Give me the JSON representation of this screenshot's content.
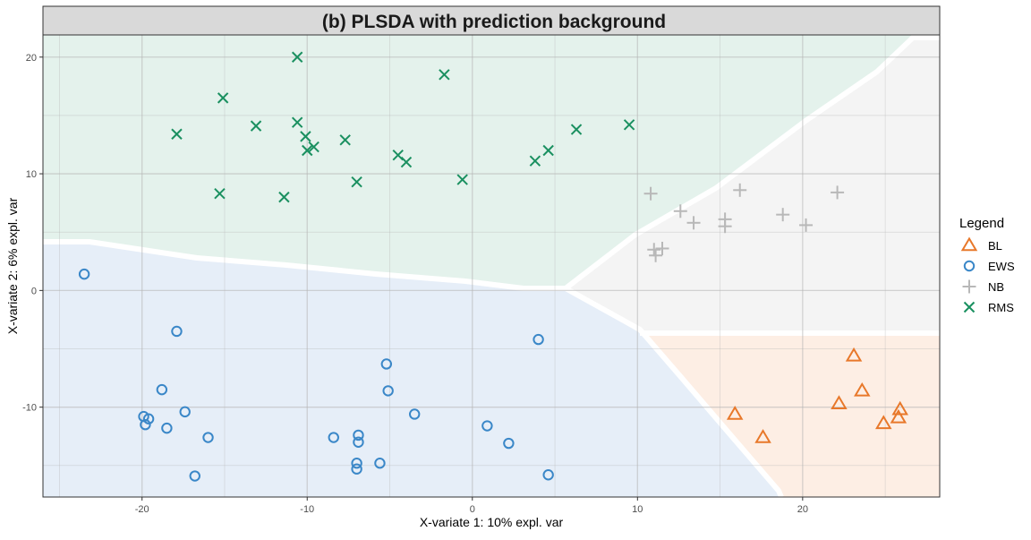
{
  "chart_data": {
    "type": "scatter",
    "title": "(b) PLSDA with prediction background",
    "xlabel": "X-variate 1: 10% expl. var",
    "ylabel": "X-variate 2: 6% expl. var",
    "xlim": [
      -26,
      28.3
    ],
    "ylim": [
      -17.7,
      21.9
    ],
    "x_ticks": [
      -20,
      -10,
      0,
      10,
      20
    ],
    "y_ticks": [
      -10,
      0,
      10,
      20
    ],
    "grid": true,
    "legend": {
      "title": "Legend",
      "position": "right"
    },
    "colors": {
      "BL": "#E8782A",
      "EWS": "#3A87C8",
      "NB": "#B8B8B8",
      "RMS": "#1A9060"
    },
    "background_regions": {
      "RMS": "#E4F2EC",
      "EWS": "#E6EEF8",
      "NB": "#F4F4F4",
      "BL": "#FDEEE4"
    },
    "series": [
      {
        "name": "BL",
        "marker": "triangle",
        "points": [
          [
            15.9,
            -10.6
          ],
          [
            17.6,
            -12.6
          ],
          [
            22.2,
            -9.7
          ],
          [
            23.1,
            -5.6
          ],
          [
            23.6,
            -8.6
          ],
          [
            24.9,
            -11.4
          ],
          [
            25.8,
            -10.9
          ],
          [
            25.9,
            -10.2
          ]
        ]
      },
      {
        "name": "EWS",
        "marker": "circle",
        "points": [
          [
            -23.5,
            1.4
          ],
          [
            -17.9,
            -3.5
          ],
          [
            -18.8,
            -8.5
          ],
          [
            -19.9,
            -10.8
          ],
          [
            -19.6,
            -11.0
          ],
          [
            -19.8,
            -11.5
          ],
          [
            -17.4,
            -10.4
          ],
          [
            -18.5,
            -11.8
          ],
          [
            -16.0,
            -12.6
          ],
          [
            -16.8,
            -15.9
          ],
          [
            -8.4,
            -12.6
          ],
          [
            -6.9,
            -12.4
          ],
          [
            -6.9,
            -13.0
          ],
          [
            -7.0,
            -14.8
          ],
          [
            -7.0,
            -15.3
          ],
          [
            -5.6,
            -14.8
          ],
          [
            -5.2,
            -6.3
          ],
          [
            -5.1,
            -8.6
          ],
          [
            -3.5,
            -10.6
          ],
          [
            0.9,
            -11.6
          ],
          [
            2.2,
            -13.1
          ],
          [
            4.0,
            -4.2
          ],
          [
            4.6,
            -15.8
          ]
        ]
      },
      {
        "name": "NB",
        "marker": "plus",
        "points": [
          [
            10.8,
            8.3
          ],
          [
            12.6,
            6.8
          ],
          [
            13.4,
            5.8
          ],
          [
            15.3,
            6.1
          ],
          [
            15.3,
            5.5
          ],
          [
            16.2,
            8.6
          ],
          [
            18.8,
            6.5
          ],
          [
            20.2,
            5.6
          ],
          [
            22.1,
            8.4
          ],
          [
            11.0,
            3.5
          ],
          [
            11.1,
            3.0
          ],
          [
            11.5,
            3.6
          ]
        ]
      },
      {
        "name": "RMS",
        "marker": "x",
        "points": [
          [
            -17.9,
            13.4
          ],
          [
            -15.1,
            16.5
          ],
          [
            -15.3,
            8.3
          ],
          [
            -13.1,
            14.1
          ],
          [
            -11.4,
            8.0
          ],
          [
            -10.6,
            20.0
          ],
          [
            -10.6,
            14.4
          ],
          [
            -10.1,
            13.2
          ],
          [
            -10.0,
            12.0
          ],
          [
            -9.6,
            12.3
          ],
          [
            -7.7,
            12.9
          ],
          [
            -7.0,
            9.3
          ],
          [
            -4.5,
            11.6
          ],
          [
            -4.0,
            11.0
          ],
          [
            -1.7,
            18.5
          ],
          [
            -0.6,
            9.5
          ],
          [
            3.8,
            11.1
          ],
          [
            4.6,
            12.0
          ],
          [
            6.3,
            13.8
          ],
          [
            9.5,
            14.2
          ]
        ]
      }
    ]
  }
}
